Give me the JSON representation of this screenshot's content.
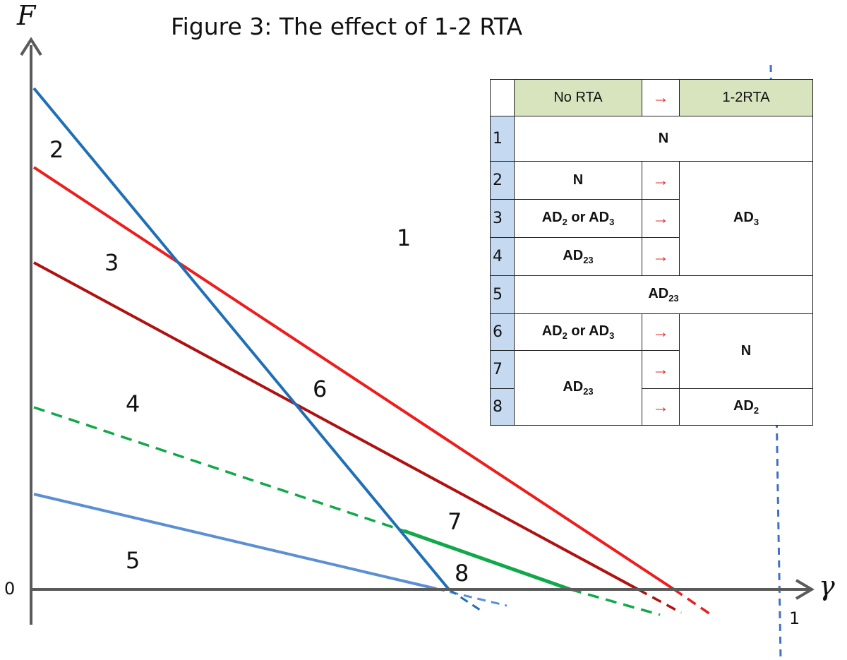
{
  "title": "Figure 3: The effect of 1-2 RTA",
  "axes": {
    "y_label": "F",
    "x_label": "γ",
    "origin_label": "0",
    "x_tick_label": "1"
  },
  "regions": [
    "1",
    "2",
    "3",
    "4",
    "5",
    "6",
    "7",
    "8"
  ],
  "colors": {
    "blue": "#1f6fb6",
    "red": "#ee1c1c",
    "dark_red": "#b01010",
    "green": "#11a84a",
    "light_blue": "#5b8fd4",
    "axis": "#5a5a5a"
  },
  "table": {
    "header": {
      "left": "No RTA",
      "arrow": "→",
      "right": "1-2RTA"
    },
    "rows": [
      {
        "num": "1",
        "span": "N"
      },
      {
        "num": "2",
        "before": "N",
        "arrow": "→",
        "after": "AD3"
      },
      {
        "num": "3",
        "before": "AD2 or AD3",
        "arrow": "→"
      },
      {
        "num": "4",
        "before": "AD23",
        "arrow": "→"
      },
      {
        "num": "5",
        "span": "AD23"
      },
      {
        "num": "6",
        "before": "AD2 or AD3",
        "arrow": "→",
        "after": "N"
      },
      {
        "num": "7",
        "before": "AD23",
        "arrow": "→"
      },
      {
        "num": "8",
        "arrow": "→",
        "after": "AD2"
      }
    ]
  }
}
